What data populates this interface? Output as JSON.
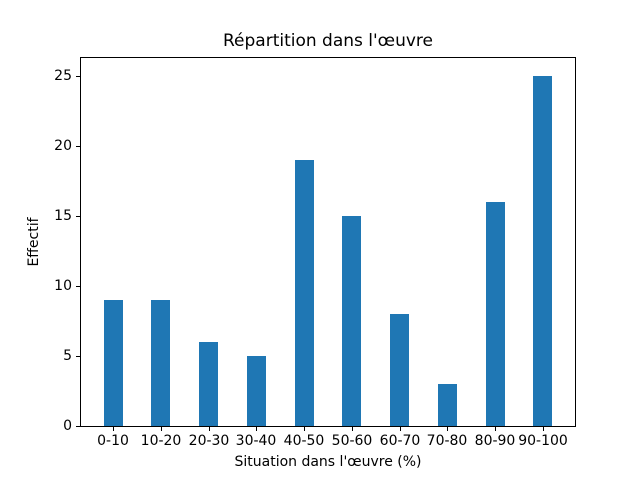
{
  "chart_data": {
    "type": "bar",
    "title": "Répartition dans l'œuvre",
    "xlabel": "Situation dans l'œuvre (%)",
    "ylabel": "Effectif",
    "categories": [
      "0-10",
      "10-20",
      "20-30",
      "30-40",
      "40-50",
      "50-60",
      "60-70",
      "70-80",
      "80-90",
      "90-100"
    ],
    "values": [
      9,
      9,
      6,
      5,
      19,
      15,
      8,
      3,
      16,
      25
    ],
    "yticks": [
      0,
      5,
      10,
      15,
      20,
      25
    ],
    "ylim": [
      0,
      26.25
    ],
    "bar_color": "#1f77b4",
    "spine_color": "#000000",
    "background_color": "#ffffff",
    "grid": false,
    "legend": null,
    "bar_width_fraction": 0.4
  }
}
